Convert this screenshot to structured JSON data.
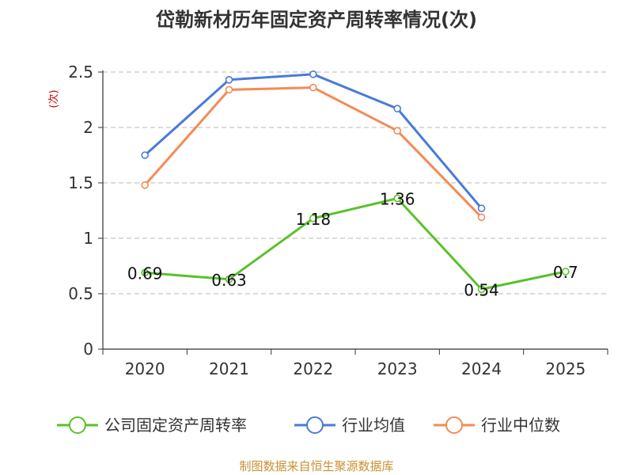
{
  "chart_data": {
    "type": "line",
    "title": "岱勒新材历年固定资产周转率情况(次)",
    "ylabel": "(次)",
    "xlabel": "",
    "categories": [
      "2020",
      "2021",
      "2022",
      "2023",
      "2024",
      "2025"
    ],
    "y_ticks": [
      "0",
      "0.5",
      "1",
      "1.5",
      "2",
      "2.5"
    ],
    "ylim": [
      0,
      2.5
    ],
    "grid": "horizontal dashed",
    "legend_position": "bottom",
    "series": [
      {
        "name": "公司固定资产周转率",
        "color": "#5ac12a",
        "values": [
          0.69,
          0.63,
          1.18,
          1.36,
          0.54,
          0.7
        ],
        "labels": [
          "0.69",
          "0.63",
          "1.18",
          "1.36",
          "0.54",
          "0.7"
        ]
      },
      {
        "name": "行业均值",
        "color": "#4a7bd8",
        "values": [
          1.75,
          2.43,
          2.48,
          2.17,
          1.27,
          null
        ]
      },
      {
        "name": "行业中位数",
        "color": "#f58a55",
        "values": [
          1.48,
          2.34,
          2.36,
          1.97,
          1.19,
          null
        ]
      }
    ]
  },
  "source": "制图数据来自恒生聚源数据库"
}
